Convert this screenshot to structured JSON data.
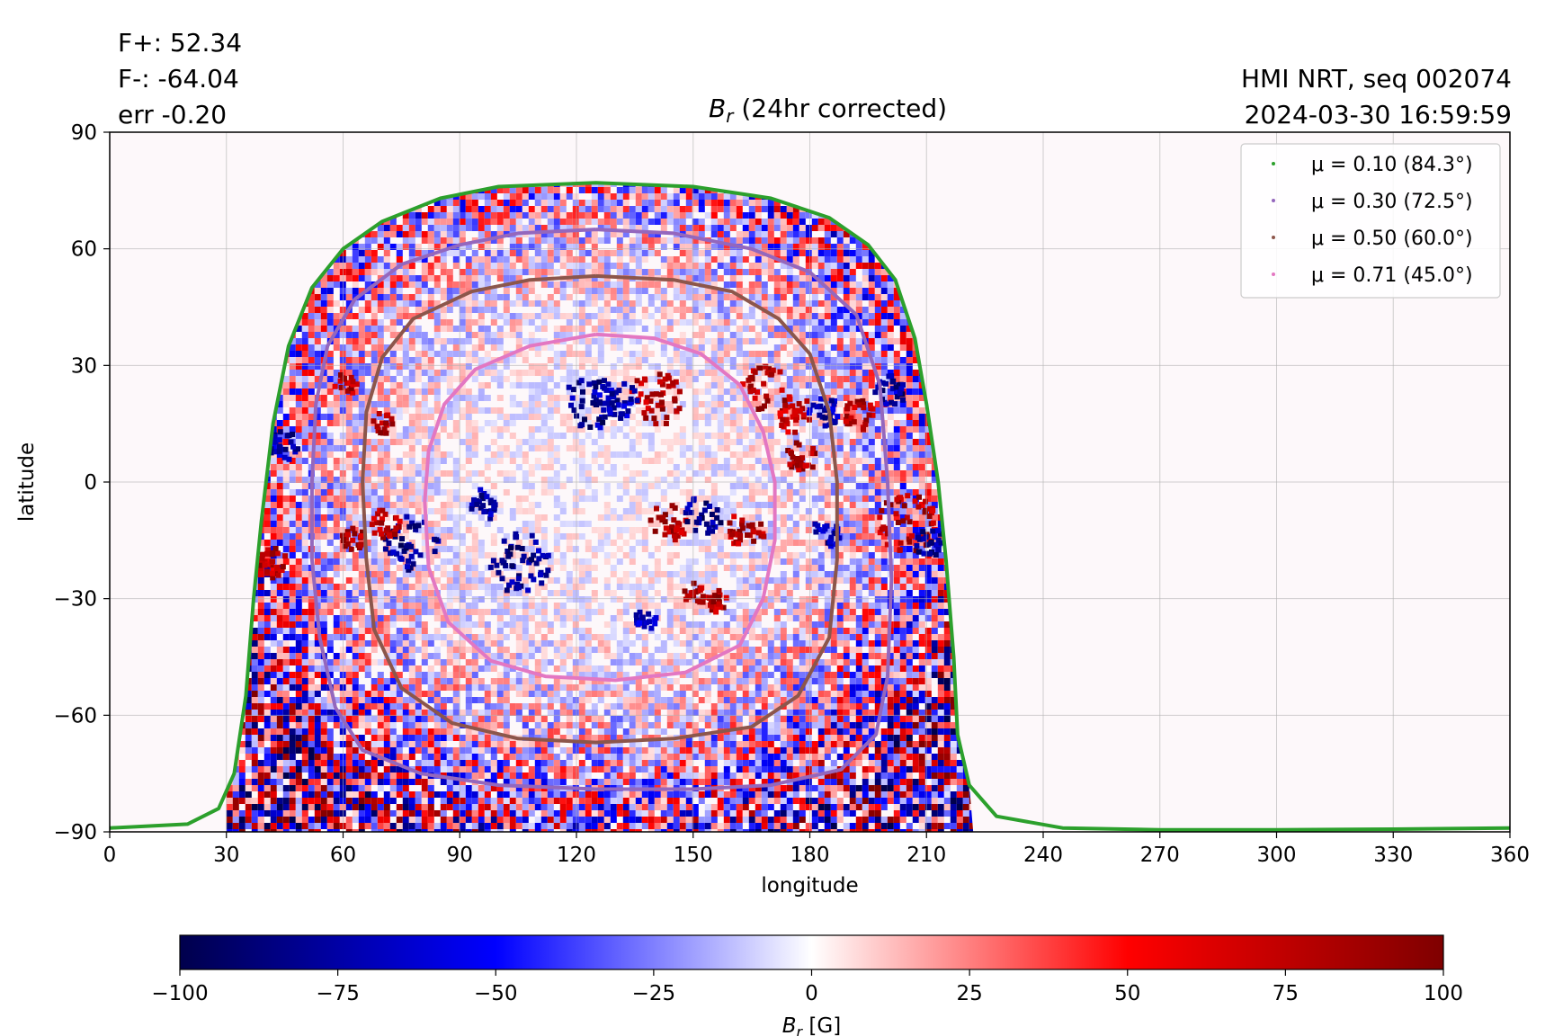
{
  "annotations": {
    "flux_plus": "F+: 52.34",
    "flux_minus": "F-: -64.04",
    "error": "err -0.20",
    "instrument": "HMI NRT, seq 002074",
    "datetime": "2024-03-30 16:59:59"
  },
  "chart_data": [
    {
      "type": "heatmap",
      "title": "B_r (24hr corrected)",
      "title_parts": {
        "symbol": "B",
        "subscript": "r",
        "rest": " (24hr corrected)"
      },
      "xlabel": "longitude",
      "ylabel": "latitude",
      "xlim": [
        0,
        360
      ],
      "ylim": [
        -90,
        90
      ],
      "xticks": [
        0,
        30,
        60,
        90,
        120,
        150,
        180,
        210,
        240,
        270,
        300,
        330,
        360
      ],
      "yticks": [
        90,
        60,
        30,
        0,
        -30,
        -60,
        -90
      ],
      "ytick_labels": [
        "90",
        "60",
        "30",
        "0",
        "−30",
        "−60",
        "−90"
      ],
      "grid": true,
      "legend_position": "top-right",
      "background_color": "#fdf8fa",
      "disk_longitude_range": [
        30,
        220
      ],
      "disk_center_longitude": 125,
      "series": [
        {
          "name": "μ = 0.10 (84.3°)",
          "mu": 0.1,
          "angle_deg": 84.3,
          "color": "#2ca02c"
        },
        {
          "name": "μ = 0.30 (72.5°)",
          "mu": 0.3,
          "angle_deg": 72.5,
          "color": "#9467bd"
        },
        {
          "name": "μ = 0.50 (60.0°)",
          "mu": 0.5,
          "angle_deg": 60.0,
          "color": "#8c564b"
        },
        {
          "name": "μ = 0.71 (45.0°)",
          "mu": 0.71,
          "angle_deg": 45.0,
          "color": "#e377c2"
        }
      ],
      "contours": [
        {
          "series": 0,
          "points": [
            [
              0,
              -89
            ],
            [
              20,
              -88
            ],
            [
              28,
              -84
            ],
            [
              32,
              -75
            ],
            [
              35,
              -55
            ],
            [
              37,
              -30
            ],
            [
              39,
              -10
            ],
            [
              42,
              15
            ],
            [
              46,
              35
            ],
            [
              52,
              50
            ],
            [
              60,
              60
            ],
            [
              70,
              67
            ],
            [
              85,
              73
            ],
            [
              100,
              76
            ],
            [
              125,
              77
            ],
            [
              150,
              76
            ],
            [
              170,
              73
            ],
            [
              185,
              68
            ],
            [
              195,
              61
            ],
            [
              202,
              52
            ],
            [
              207,
              37
            ],
            [
              210,
              20
            ],
            [
              213,
              0
            ],
            [
              215,
              -20
            ],
            [
              217,
              -45
            ],
            [
              218,
              -65
            ],
            [
              221,
              -78
            ],
            [
              228,
              -86
            ],
            [
              245,
              -89
            ],
            [
              270,
              -89.5
            ],
            [
              300,
              -89.5
            ],
            [
              330,
              -89.3
            ],
            [
              360,
              -89
            ]
          ]
        },
        {
          "series": 1,
          "points": [
            [
              125,
              65
            ],
            [
              145,
              64
            ],
            [
              165,
              60
            ],
            [
              180,
              54
            ],
            [
              192,
              43
            ],
            [
              198,
              25
            ],
            [
              200,
              0
            ],
            [
              201,
              -25
            ],
            [
              200,
              -50
            ],
            [
              197,
              -65
            ],
            [
              188,
              -74
            ],
            [
              170,
              -78
            ],
            [
              150,
              -79
            ],
            [
              125,
              -79
            ],
            [
              100,
              -78
            ],
            [
              80,
              -75
            ],
            [
              65,
              -69
            ],
            [
              58,
              -58
            ],
            [
              54,
              -40
            ],
            [
              52,
              -20
            ],
            [
              52,
              0
            ],
            [
              53,
              20
            ],
            [
              56,
              35
            ],
            [
              63,
              47
            ],
            [
              75,
              56
            ],
            [
              90,
              61
            ],
            [
              105,
              64
            ],
            [
              125,
              65
            ]
          ]
        },
        {
          "series": 2,
          "points": [
            [
              125,
              53
            ],
            [
              145,
              52
            ],
            [
              160,
              49
            ],
            [
              172,
              42
            ],
            [
              180,
              33
            ],
            [
              185,
              18
            ],
            [
              187,
              0
            ],
            [
              187,
              -20
            ],
            [
              185,
              -40
            ],
            [
              177,
              -55
            ],
            [
              165,
              -63
            ],
            [
              145,
              -66
            ],
            [
              125,
              -67
            ],
            [
              105,
              -66
            ],
            [
              88,
              -62
            ],
            [
              75,
              -53
            ],
            [
              68,
              -38
            ],
            [
              66,
              -20
            ],
            [
              65,
              0
            ],
            [
              66,
              18
            ],
            [
              70,
              32
            ],
            [
              78,
              42
            ],
            [
              93,
              49
            ],
            [
              108,
              52
            ],
            [
              125,
              53
            ]
          ]
        },
        {
          "series": 3,
          "points": [
            [
              125,
              38
            ],
            [
              140,
              37
            ],
            [
              152,
              33
            ],
            [
              162,
              25
            ],
            [
              168,
              13
            ],
            [
              171,
              0
            ],
            [
              171,
              -15
            ],
            [
              168,
              -30
            ],
            [
              162,
              -42
            ],
            [
              148,
              -49
            ],
            [
              130,
              -51
            ],
            [
              112,
              -50
            ],
            [
              98,
              -46
            ],
            [
              87,
              -36
            ],
            [
              82,
              -22
            ],
            [
              81,
              -5
            ],
            [
              82,
              8
            ],
            [
              86,
              20
            ],
            [
              94,
              29
            ],
            [
              108,
              35
            ],
            [
              125,
              38
            ]
          ]
        }
      ],
      "features": [
        {
          "lon": 140,
          "lat": 22,
          "value": 100,
          "size": 7
        },
        {
          "lon": 123,
          "lat": 21,
          "value": -100,
          "size": 7
        },
        {
          "lon": 130,
          "lat": 22,
          "value": -90,
          "size": 5
        },
        {
          "lon": 168,
          "lat": 25,
          "value": 100,
          "size": 6
        },
        {
          "lon": 176,
          "lat": 18,
          "value": 90,
          "size": 5
        },
        {
          "lon": 183,
          "lat": 19,
          "value": -90,
          "size": 4
        },
        {
          "lon": 192,
          "lat": 18,
          "value": 100,
          "size": 4
        },
        {
          "lon": 200,
          "lat": 24,
          "value": -100,
          "size": 4
        },
        {
          "lon": 177,
          "lat": 7,
          "value": 100,
          "size": 4
        },
        {
          "lon": 60,
          "lat": 26,
          "value": 100,
          "size": 3
        },
        {
          "lon": 70,
          "lat": 16,
          "value": 100,
          "size": 3
        },
        {
          "lon": 44,
          "lat": 10,
          "value": -100,
          "size": 4
        },
        {
          "lon": 205,
          "lat": -10,
          "value": 100,
          "size": 8
        },
        {
          "lon": 210,
          "lat": -15,
          "value": -100,
          "size": 4
        },
        {
          "lon": 77,
          "lat": -15,
          "value": -100,
          "size": 7
        },
        {
          "lon": 70,
          "lat": -10,
          "value": 100,
          "size": 4
        },
        {
          "lon": 62,
          "lat": -14,
          "value": 100,
          "size": 3
        },
        {
          "lon": 105,
          "lat": -20,
          "value": -100,
          "size": 8
        },
        {
          "lon": 96,
          "lat": -5,
          "value": -100,
          "size": 4
        },
        {
          "lon": 143,
          "lat": -10,
          "value": 100,
          "size": 5
        },
        {
          "lon": 152,
          "lat": -8,
          "value": -100,
          "size": 5
        },
        {
          "lon": 163,
          "lat": -12,
          "value": 100,
          "size": 5
        },
        {
          "lon": 183,
          "lat": -13,
          "value": -90,
          "size": 4
        },
        {
          "lon": 41,
          "lat": -20,
          "value": 100,
          "size": 4
        },
        {
          "lon": 150,
          "lat": -28,
          "value": 100,
          "size": 3
        },
        {
          "lon": 137,
          "lat": -35,
          "value": -80,
          "size": 3
        },
        {
          "lon": 156,
          "lat": -30,
          "value": 100,
          "size": 3
        }
      ]
    },
    {
      "type": "heatmap",
      "title": "",
      "xlabel_parts": {
        "symbol": "B",
        "subscript": "r",
        "rest": " [G]"
      },
      "orientation": "horizontal",
      "colormap": "seismic",
      "vmin": -100,
      "vmax": 100,
      "ticks": [
        -100,
        -75,
        -50,
        -25,
        0,
        25,
        50,
        75,
        100
      ],
      "tick_labels": [
        "−100",
        "−75",
        "−50",
        "−25",
        "0",
        "25",
        "50",
        "75",
        "100"
      ],
      "colors": [
        "#00004c",
        "#0000ff",
        "#ffffff",
        "#ff0000",
        "#7f0000"
      ]
    }
  ]
}
